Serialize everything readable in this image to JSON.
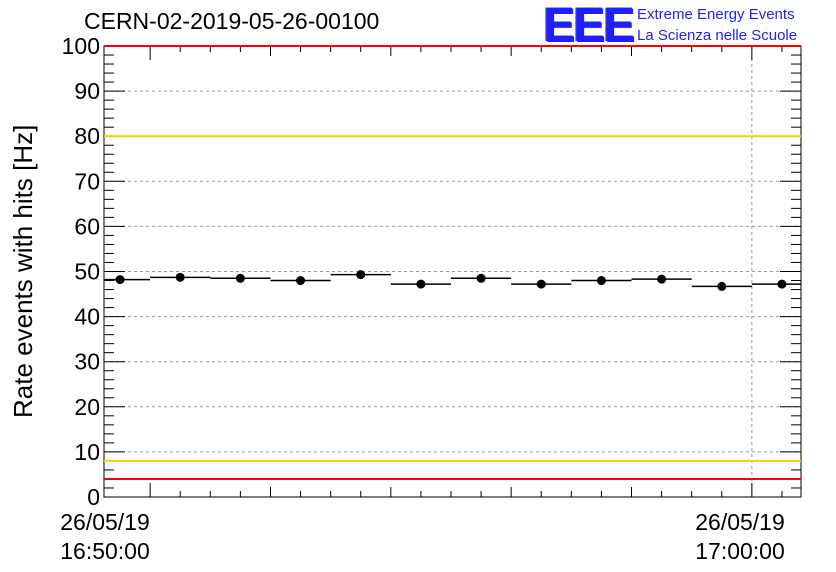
{
  "chart_data": {
    "type": "scatter",
    "title": "CERN-02-2019-05-26-00100",
    "ylabel": "Rate events with hits [Hz]",
    "xlabel": "",
    "ylim": [
      0,
      100
    ],
    "yticks": [
      0,
      10,
      20,
      30,
      40,
      50,
      60,
      70,
      80,
      90,
      100
    ],
    "xlim": [
      "26/05/19 16:49:14",
      "26/05/19 17:00:49"
    ],
    "xticks": [
      {
        "date": "26/05/19",
        "time": "16:50:00"
      },
      {
        "date": "26/05/19",
        "time": "17:00:00"
      }
    ],
    "grid": true,
    "series": [
      {
        "marker": "circle",
        "color": "#000000",
        "x": [
          "16:49:30",
          "16:50:30",
          "16:51:30",
          "16:52:30",
          "16:53:30",
          "16:54:30",
          "16:55:30",
          "16:56:30",
          "16:57:30",
          "16:58:30",
          "16:59:30",
          "17:00:30"
        ],
        "x_error_seconds": 30,
        "values": [
          48.2,
          48.7,
          48.5,
          48.0,
          49.3,
          47.2,
          48.5,
          47.2,
          48.0,
          48.3,
          46.7,
          47.2
        ]
      }
    ],
    "reference_lines": [
      {
        "y": 100,
        "color": "#ff0000"
      },
      {
        "y": 80,
        "color": "#ffcc00"
      },
      {
        "y": 8,
        "color": "#ffcc00"
      },
      {
        "y": 4,
        "color": "#ff0000"
      }
    ]
  },
  "logo": {
    "mark": "EEE",
    "line1": "Extreme Energy Events",
    "line2": "La Scienza nelle Scuole",
    "color": "#1f1fff"
  }
}
